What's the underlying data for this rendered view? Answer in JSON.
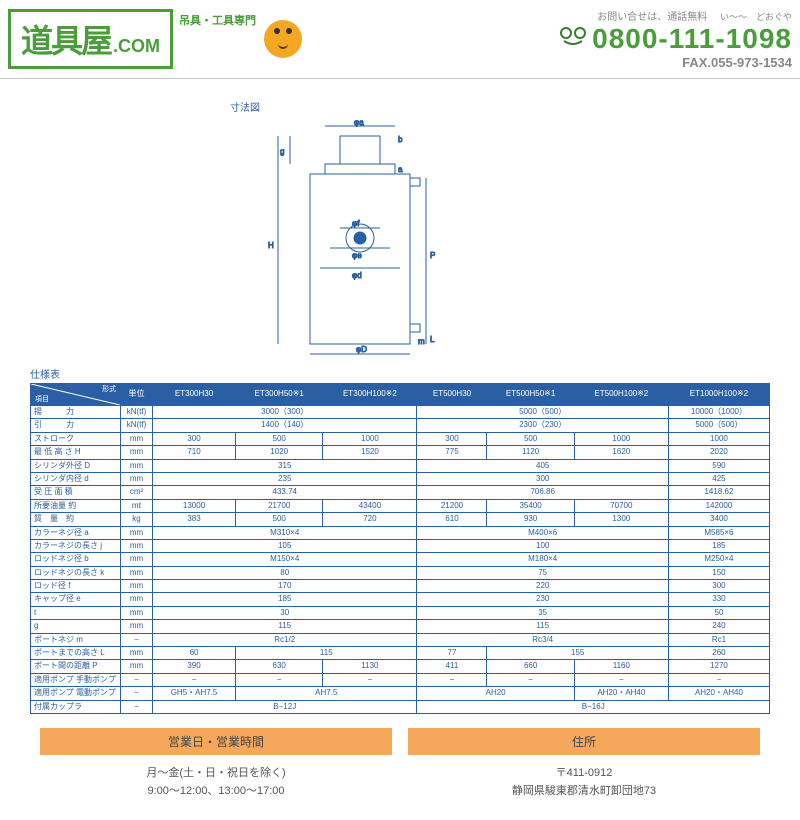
{
  "header": {
    "logo_main": "道具屋",
    "logo_suffix": ".COM",
    "logo_tag": "吊具・工具専門",
    "contact_label": "お問い合せは、通話無料",
    "ruby": "い〜〜　どおぐや",
    "phone": "0800-111-1098",
    "fax": "FAX.055-973-1534"
  },
  "diagram": {
    "title": "寸法図"
  },
  "spec": {
    "title": "仕様表",
    "corner_top": "形式",
    "corner_bottom": "項目",
    "corner_unit": "単位",
    "models": [
      "ET300H30",
      "ET300H50※1",
      "ET300H100※2",
      "ET500H30",
      "ET500H50※1",
      "ET500H100※2",
      "ET1000H100※2"
    ],
    "rows": [
      {
        "label": "揚　　　力",
        "unit": "kN(tf)",
        "cells": [
          [
            "3000（300）",
            3
          ],
          [
            "5000（500）",
            3
          ],
          [
            "10000（1000）",
            1
          ]
        ]
      },
      {
        "label": "引　　　力",
        "unit": "kN(tf)",
        "cells": [
          [
            "1400（140）",
            3
          ],
          [
            "2300（230）",
            3
          ],
          [
            "5000（500）",
            1
          ]
        ]
      },
      {
        "label": "ストローク",
        "unit": "mm",
        "cells": [
          [
            "300",
            1
          ],
          [
            "500",
            1
          ],
          [
            "1000",
            1
          ],
          [
            "300",
            1
          ],
          [
            "500",
            1
          ],
          [
            "1000",
            1
          ],
          [
            "1000",
            1
          ]
        ]
      },
      {
        "label": "最 低 高 さ H",
        "unit": "mm",
        "cells": [
          [
            "710",
            1
          ],
          [
            "1020",
            1
          ],
          [
            "1520",
            1
          ],
          [
            "775",
            1
          ],
          [
            "1120",
            1
          ],
          [
            "1620",
            1
          ],
          [
            "2020",
            1
          ]
        ]
      },
      {
        "label": "シリンダ外径 D",
        "unit": "mm",
        "cells": [
          [
            "315",
            3
          ],
          [
            "405",
            3
          ],
          [
            "590",
            1
          ]
        ]
      },
      {
        "label": "シリンダ内径 d",
        "unit": "mm",
        "cells": [
          [
            "235",
            3
          ],
          [
            "300",
            3
          ],
          [
            "425",
            1
          ]
        ]
      },
      {
        "label": "受 圧 面 積",
        "unit": "cm²",
        "cells": [
          [
            "433.74",
            3
          ],
          [
            "706.86",
            3
          ],
          [
            "1418.62",
            1
          ]
        ]
      },
      {
        "label": "所要油量 約",
        "unit": "mℓ",
        "cells": [
          [
            "13000",
            1
          ],
          [
            "21700",
            1
          ],
          [
            "43400",
            1
          ],
          [
            "21200",
            1
          ],
          [
            "35400",
            1
          ],
          [
            "70700",
            1
          ],
          [
            "142000",
            1
          ]
        ]
      },
      {
        "label": "質　量　約",
        "unit": "kg",
        "cells": [
          [
            "383",
            1
          ],
          [
            "500",
            1
          ],
          [
            "720",
            1
          ],
          [
            "610",
            1
          ],
          [
            "930",
            1
          ],
          [
            "1300",
            1
          ],
          [
            "3400",
            1
          ]
        ]
      },
      {
        "label": "カラーネジ径 a",
        "unit": "mm",
        "cells": [
          [
            "M310×4",
            3
          ],
          [
            "M400×6",
            3
          ],
          [
            "M585×6",
            1
          ]
        ]
      },
      {
        "label": "カラーネジの長さ j",
        "unit": "mm",
        "cells": [
          [
            "105",
            3
          ],
          [
            "100",
            3
          ],
          [
            "185",
            1
          ]
        ]
      },
      {
        "label": "ロッドネジ径 b",
        "unit": "mm",
        "cells": [
          [
            "M150×4",
            3
          ],
          [
            "M180×4",
            3
          ],
          [
            "M250×4",
            1
          ]
        ]
      },
      {
        "label": "ロッドネジの長さ k",
        "unit": "mm",
        "cells": [
          [
            "80",
            3
          ],
          [
            "75",
            3
          ],
          [
            "150",
            1
          ]
        ]
      },
      {
        "label": "ロッド径 f",
        "unit": "mm",
        "cells": [
          [
            "170",
            3
          ],
          [
            "220",
            3
          ],
          [
            "300",
            1
          ]
        ]
      },
      {
        "label": "キャップ径 e",
        "unit": "mm",
        "cells": [
          [
            "185",
            3
          ],
          [
            "230",
            3
          ],
          [
            "330",
            1
          ]
        ]
      },
      {
        "label": "t",
        "unit": "mm",
        "cells": [
          [
            "30",
            3
          ],
          [
            "35",
            3
          ],
          [
            "50",
            1
          ]
        ]
      },
      {
        "label": "g",
        "unit": "mm",
        "cells": [
          [
            "115",
            3
          ],
          [
            "115",
            3
          ],
          [
            "240",
            1
          ]
        ]
      },
      {
        "label": "ポートネジ m",
        "unit": "−",
        "cells": [
          [
            "Rc1/2",
            3
          ],
          [
            "Rc3/4",
            3
          ],
          [
            "Rc1",
            1
          ]
        ]
      },
      {
        "label": "ポートまでの高さ L",
        "unit": "mm",
        "cells": [
          [
            "60",
            1
          ],
          [
            "115",
            2
          ],
          [
            "77",
            1
          ],
          [
            "155",
            2
          ],
          [
            "260",
            1
          ]
        ]
      },
      {
        "label": "ポート間の距離 P",
        "unit": "mm",
        "cells": [
          [
            "390",
            1
          ],
          [
            "630",
            1
          ],
          [
            "1130",
            1
          ],
          [
            "411",
            1
          ],
          [
            "660",
            1
          ],
          [
            "1160",
            1
          ],
          [
            "1270",
            1
          ]
        ]
      },
      {
        "label": "適用ポンプ 手動ポンプ",
        "unit": "−",
        "cells": [
          [
            "−",
            1
          ],
          [
            "−",
            1
          ],
          [
            "−",
            1
          ],
          [
            "−",
            1
          ],
          [
            "−",
            1
          ],
          [
            "−",
            1
          ],
          [
            "−",
            1
          ]
        ]
      },
      {
        "label": "適用ポンプ 電動ポンプ",
        "unit": "−",
        "cells": [
          [
            "GH5・AH7.5",
            1
          ],
          [
            "AH7.5",
            2
          ],
          [
            "AH20",
            2
          ],
          [
            "AH20・AH40",
            1
          ],
          [
            "AH20・AH40",
            1
          ]
        ]
      },
      {
        "label": "付属カップラ",
        "unit": "−",
        "cells": [
          [
            "B−12J",
            3
          ],
          [
            "B−16J",
            4
          ]
        ]
      }
    ]
  },
  "info": {
    "hours_header": "営業日・営業時間",
    "hours_line1": "月〜金(土・日・祝日を除く)",
    "hours_line2": "9:00〜12:00、13:00〜17:00",
    "address_header": "住所",
    "address_line1": "〒411-0912",
    "address_line2": "静岡県駿東郡清水町卸団地73"
  }
}
